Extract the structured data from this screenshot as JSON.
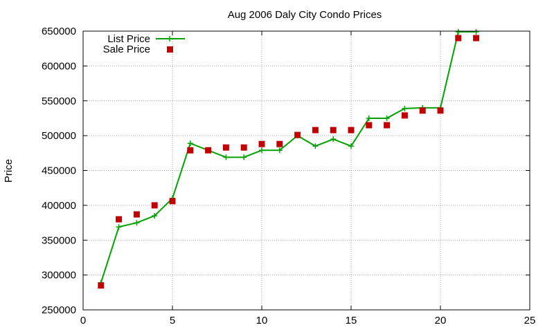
{
  "chart_data": {
    "type": "line",
    "title": "Aug 2006 Daly City Condo Prices",
    "xlabel": "",
    "ylabel": "Price",
    "xlim": [
      0,
      25
    ],
    "ylim": [
      250000,
      650000
    ],
    "xticks": [
      "0",
      "5",
      "10",
      "15",
      "20",
      "25"
    ],
    "yticks": [
      "250000",
      "300000",
      "350000",
      "400000",
      "450000",
      "500000",
      "550000",
      "600000",
      "650000"
    ],
    "grid": true,
    "legend_position": "top-left",
    "series": [
      {
        "name": "List Price",
        "style": "linespoints",
        "color": "#00a000",
        "marker": "plus",
        "x": [
          1,
          2,
          3,
          4,
          5,
          6,
          7,
          8,
          9,
          10,
          11,
          12,
          13,
          14,
          15,
          16,
          17,
          18,
          19,
          20,
          21,
          22
        ],
        "y": [
          289000,
          369000,
          375000,
          385000,
          410000,
          489000,
          479000,
          469000,
          469000,
          479000,
          479000,
          500000,
          485000,
          495000,
          485000,
          525000,
          525000,
          539000,
          540000,
          540000,
          649000,
          649000
        ]
      },
      {
        "name": "Sale Price",
        "style": "points",
        "color": "#c00000",
        "marker": "square",
        "x": [
          1,
          2,
          3,
          4,
          5,
          6,
          7,
          8,
          9,
          10,
          11,
          12,
          13,
          14,
          15,
          16,
          17,
          18,
          19,
          20,
          21,
          22
        ],
        "y": [
          285000,
          380000,
          387000,
          400000,
          406000,
          479000,
          479000,
          483000,
          483000,
          488000,
          488000,
          501000,
          508000,
          508000,
          508000,
          515000,
          515000,
          529000,
          536000,
          536000,
          640000,
          640000
        ]
      }
    ]
  }
}
